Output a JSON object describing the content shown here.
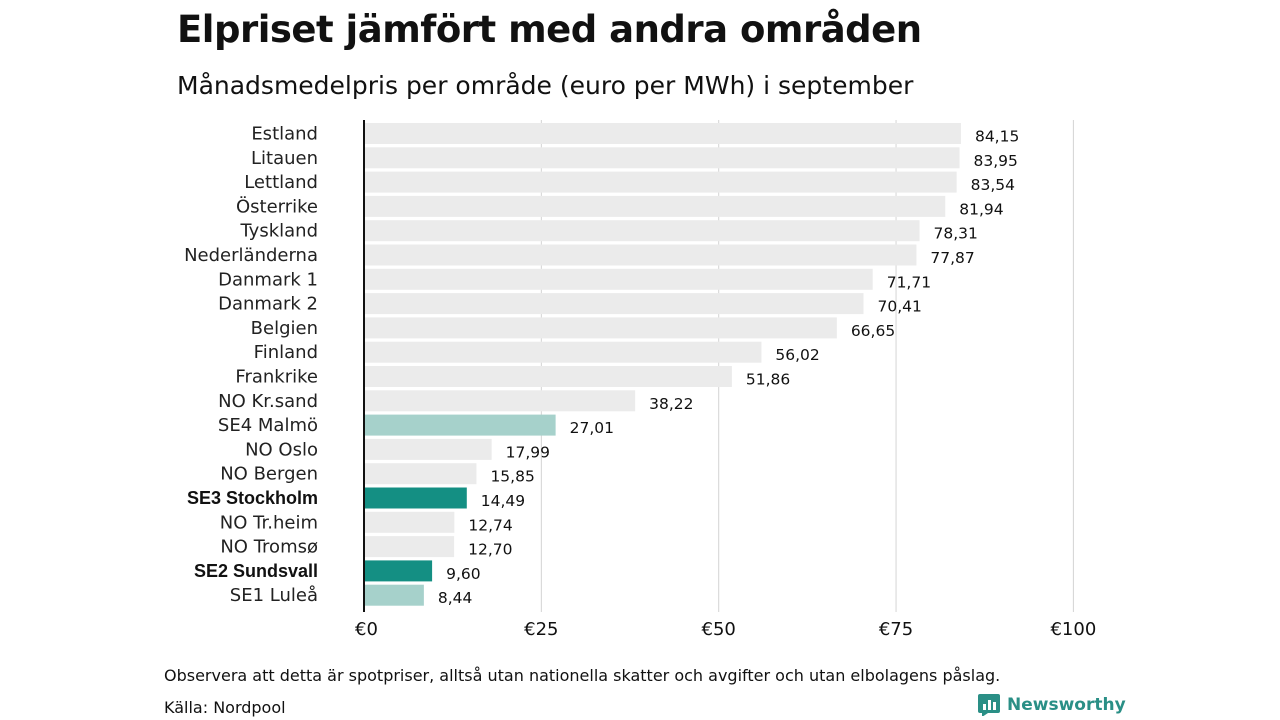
{
  "header": {
    "title": "Elpriset jämfört med andra områden",
    "subtitle": "Månadsmedelpris per område (euro per MWh) i september"
  },
  "footer": {
    "note": "Observera att detta är spotpriser, alltså utan nationella skatter och avgifter och utan elbolagens påslag.",
    "source": "Källa: Nordpool",
    "brand": "Newsworthy"
  },
  "colors": {
    "default_bar": "#ebebeb",
    "se_light": "#a6d1cb",
    "se_dark": "#148f83",
    "brand": "#2a8f86"
  },
  "icons": {
    "brand_logo": "bar-chart-logo-icon"
  },
  "chart_data": {
    "type": "bar",
    "orientation": "horizontal",
    "title": "Månadsmedelpris per område (euro per MWh) i september",
    "xlim": [
      0,
      100
    ],
    "x_ticks": [
      "€0",
      "€25",
      "€50",
      "€75",
      "€100"
    ],
    "x_tick_values": [
      0,
      25,
      50,
      75,
      100
    ],
    "grid": true,
    "categories": [
      "Estland",
      "Litauen",
      "Lettland",
      "Österrike",
      "Tyskland",
      "Nederländerna",
      "Danmark 1",
      "Danmark 2",
      "Belgien",
      "Finland",
      "Frankrike",
      "NO Kr.sand",
      "SE4 Malmö",
      "NO Oslo",
      "NO Bergen",
      "SE3 Stockholm",
      "NO Tr.heim",
      "NO Tromsø",
      "SE2 Sundsvall",
      "SE1 Luleå"
    ],
    "values": [
      84.15,
      83.95,
      83.54,
      81.94,
      78.31,
      77.87,
      71.71,
      70.41,
      66.65,
      56.02,
      51.86,
      38.22,
      27.01,
      17.99,
      15.85,
      14.49,
      12.74,
      12.7,
      9.6,
      8.44
    ],
    "value_labels": [
      "84,15",
      "83,95",
      "83,54",
      "81,94",
      "78,31",
      "77,87",
      "71,71",
      "70,41",
      "66,65",
      "56,02",
      "51,86",
      "38,22",
      "27,01",
      "17,99",
      "15,85",
      "14,49",
      "12,74",
      "12,70",
      "9,60",
      "8,44"
    ],
    "bar_colors": [
      "#ebebeb",
      "#ebebeb",
      "#ebebeb",
      "#ebebeb",
      "#ebebeb",
      "#ebebeb",
      "#ebebeb",
      "#ebebeb",
      "#ebebeb",
      "#ebebeb",
      "#ebebeb",
      "#ebebeb",
      "#a6d1cb",
      "#ebebeb",
      "#ebebeb",
      "#148f83",
      "#ebebeb",
      "#ebebeb",
      "#148f83",
      "#a6d1cb"
    ],
    "bold_labels": [
      false,
      false,
      false,
      false,
      false,
      false,
      false,
      false,
      false,
      false,
      false,
      false,
      false,
      false,
      false,
      true,
      false,
      false,
      true,
      false
    ]
  }
}
